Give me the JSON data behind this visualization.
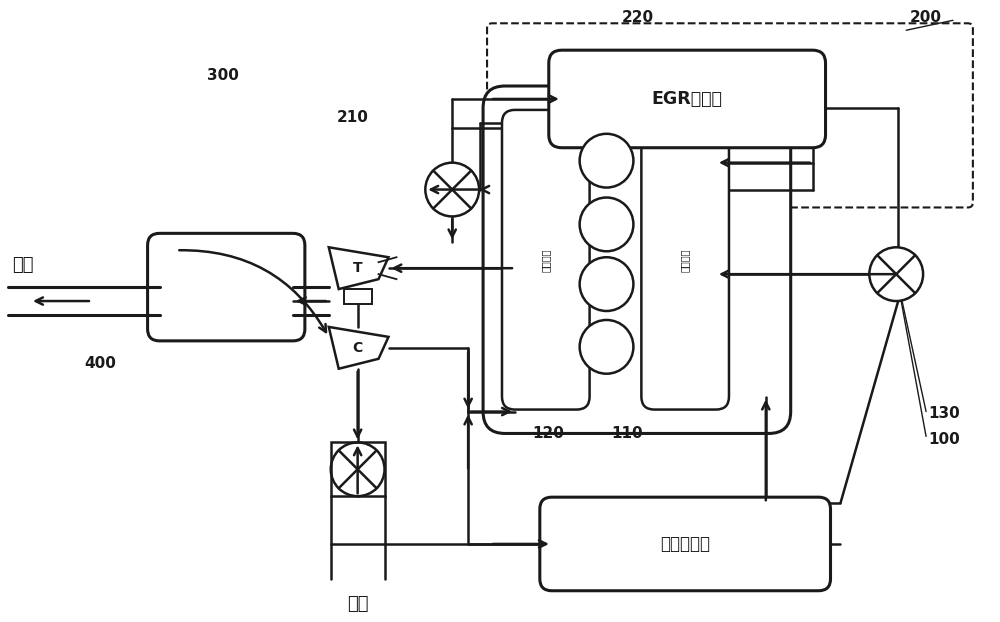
{
  "bg_color": "#ffffff",
  "line_color": "#1a1a1a",
  "label_200": "200",
  "label_220": "220",
  "label_210": "210",
  "label_300": "300",
  "label_400": "400",
  "label_100": "100",
  "label_110": "110",
  "label_120": "120",
  "label_130": "130",
  "egr_text": "EGR冷却器",
  "intercooler_text": "中间冷却器",
  "exhaust_manifold_text": "排气歧管",
  "intake_manifold_text": "进气歧管",
  "exhaust_label": "废气",
  "intake_label": "进气",
  "T_label": "T",
  "C_label": "C"
}
